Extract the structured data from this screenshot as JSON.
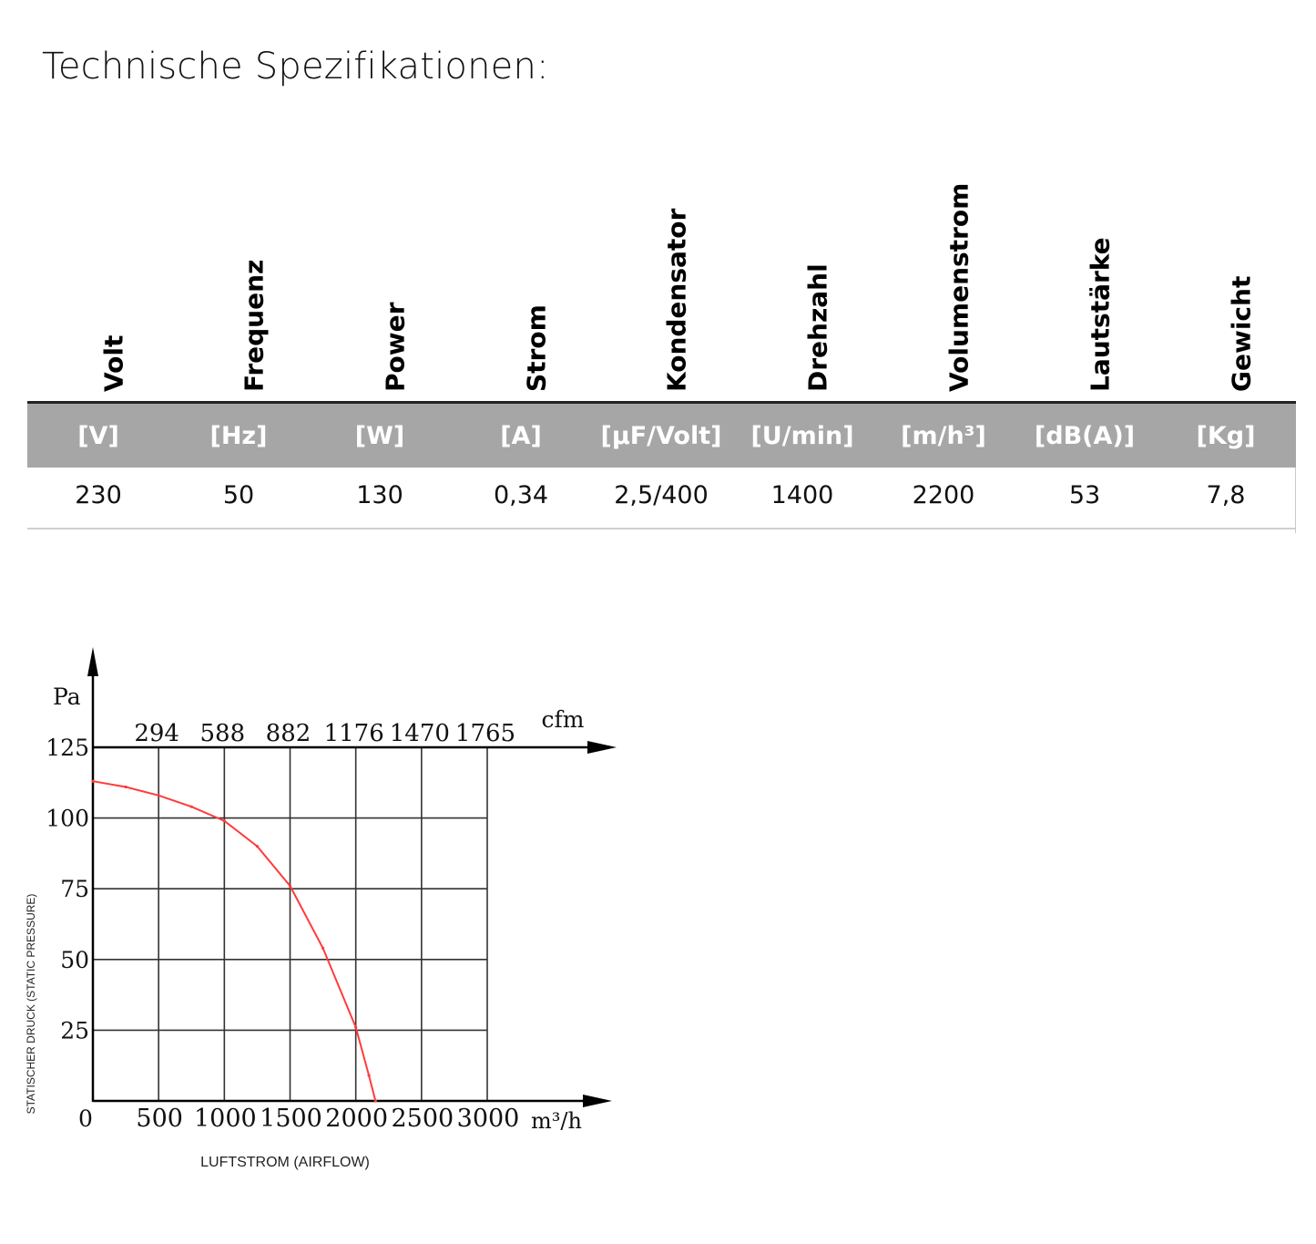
{
  "title": "Technische Spezifikationen:",
  "table": {
    "columns": [
      {
        "name": "Volt",
        "unit": "[V]",
        "value": "230"
      },
      {
        "name": "Frequenz",
        "unit": "[Hz]",
        "value": "50"
      },
      {
        "name": "Power",
        "unit": "[W]",
        "value": "130"
      },
      {
        "name": "Strom",
        "unit": "[A]",
        "value": "0,34"
      },
      {
        "name": "Kondensator",
        "unit": "[µF/Volt]",
        "value": "2,5/400"
      },
      {
        "name": "Drehzahl",
        "unit": "[U/min]",
        "value": "1400"
      },
      {
        "name": "Volumenstrom",
        "unit": "[m/h³]",
        "value": "2200"
      },
      {
        "name": "Lautstärke",
        "unit": "[dB(A)]",
        "value": "53"
      },
      {
        "name": "Gewicht",
        "unit": "[Kg]",
        "value": "7,8"
      }
    ],
    "band_color": "#a6a6a6"
  },
  "chart_data": {
    "type": "line",
    "xlabel": "LUFTSTROM (AIRFLOW)",
    "ylabel": "STATISCHER DRUCK (STATIC PRESSURE)",
    "y_unit": "Pa",
    "x_unit": "m³/h",
    "x2_unit": "cfm",
    "origin_label": "0",
    "xlim": [
      0,
      3000
    ],
    "ylim": [
      0,
      125
    ],
    "x_ticks": [
      "500",
      "1000",
      "1500",
      "2000",
      "2500",
      "3000"
    ],
    "x2_ticks": [
      "294",
      "588",
      "882",
      "1176",
      "1470",
      "1765"
    ],
    "y_ticks": [
      "125",
      "100",
      "75",
      "50",
      "25"
    ],
    "grid": true,
    "series_color": "#ff3b3b",
    "series": [
      {
        "x": [
          0,
          250,
          500,
          750,
          1000,
          1250,
          1500,
          1750,
          2000,
          2100,
          2150
        ],
        "y": [
          113,
          111,
          108,
          104,
          99,
          90,
          76,
          54,
          26,
          9,
          0
        ]
      }
    ]
  }
}
